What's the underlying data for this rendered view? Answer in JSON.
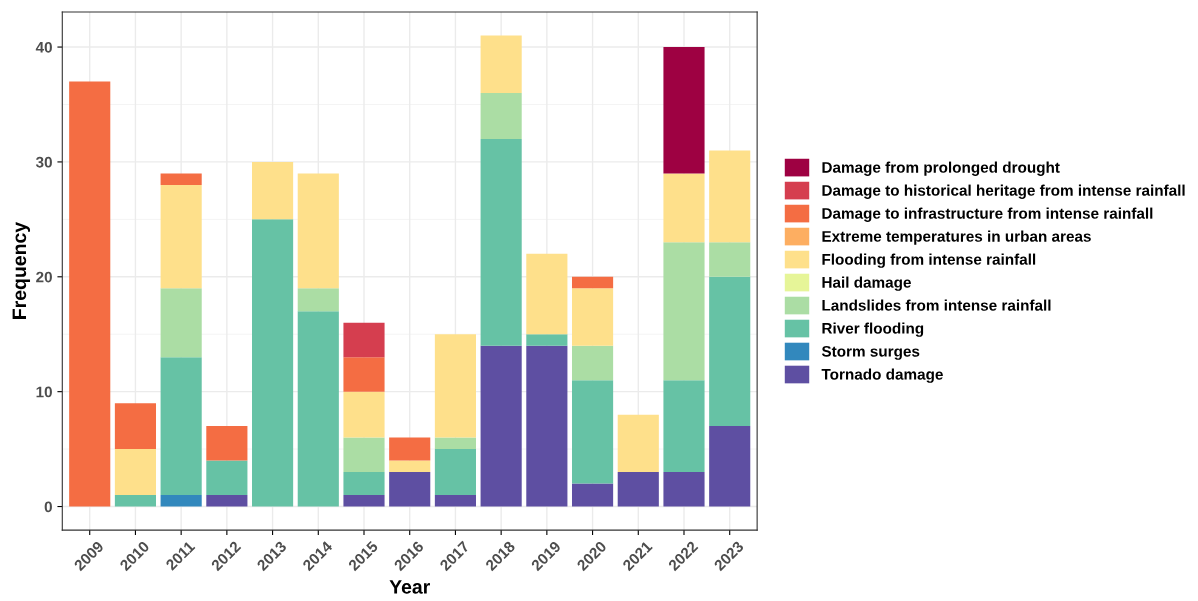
{
  "chart_data": {
    "type": "bar",
    "stacked": true,
    "xlabel": "Year",
    "ylabel": "Frequency",
    "categories": [
      "2009",
      "2010",
      "2011",
      "2012",
      "2013",
      "2014",
      "2015",
      "2016",
      "2017",
      "2018",
      "2019",
      "2020",
      "2021",
      "2022",
      "2023"
    ],
    "series": [
      {
        "name": "Tornado damage",
        "color": "#5e4fa2",
        "values": [
          0,
          0,
          0,
          1,
          0,
          0,
          1,
          3,
          1,
          14,
          14,
          2,
          3,
          3,
          7
        ]
      },
      {
        "name": "Storm surges",
        "color": "#3288bd",
        "values": [
          0,
          0,
          1,
          0,
          0,
          0,
          0,
          0,
          0,
          0,
          0,
          0,
          0,
          0,
          0
        ]
      },
      {
        "name": "River flooding",
        "color": "#66c2a5",
        "values": [
          0,
          1,
          12,
          3,
          25,
          17,
          2,
          0,
          4,
          18,
          1,
          9,
          0,
          8,
          13
        ]
      },
      {
        "name": "Landslides from intense rainfall",
        "color": "#abdda4",
        "values": [
          0,
          0,
          6,
          0,
          0,
          2,
          3,
          0,
          1,
          4,
          0,
          3,
          0,
          12,
          3
        ]
      },
      {
        "name": "Hail damage",
        "color": "#e6f598",
        "values": [
          0,
          0,
          0,
          0,
          0,
          0,
          0,
          0,
          0,
          0,
          0,
          0,
          0,
          0,
          0
        ]
      },
      {
        "name": "Flooding from intense rainfall",
        "color": "#fee08b",
        "values": [
          0,
          4,
          9,
          0,
          5,
          10,
          4,
          1,
          9,
          5,
          7,
          5,
          5,
          6,
          8
        ]
      },
      {
        "name": "Extreme temperatures in urban areas",
        "color": "#fdae61",
        "values": [
          0,
          0,
          0,
          0,
          0,
          0,
          0,
          0,
          0,
          0,
          0,
          0,
          0,
          0,
          0
        ]
      },
      {
        "name": "Damage to infrastructure from intense rainfall",
        "color": "#f46d43",
        "values": [
          37,
          4,
          1,
          3,
          0,
          0,
          3,
          2,
          0,
          0,
          0,
          1,
          0,
          0,
          0
        ]
      },
      {
        "name": "Damage to historical heritage from intense rainfall",
        "color": "#d53e4f",
        "values": [
          0,
          0,
          0,
          0,
          0,
          0,
          3,
          0,
          0,
          0,
          0,
          0,
          0,
          0,
          0
        ]
      },
      {
        "name": "Damage from prolonged drought",
        "color": "#9e0142",
        "values": [
          0,
          0,
          0,
          0,
          0,
          0,
          0,
          0,
          0,
          0,
          0,
          0,
          0,
          11,
          0
        ]
      }
    ],
    "ylim": [
      -2.05,
      43.05
    ],
    "yticks": [
      0,
      10,
      20,
      30,
      40
    ],
    "grid": true,
    "legend": "right"
  }
}
